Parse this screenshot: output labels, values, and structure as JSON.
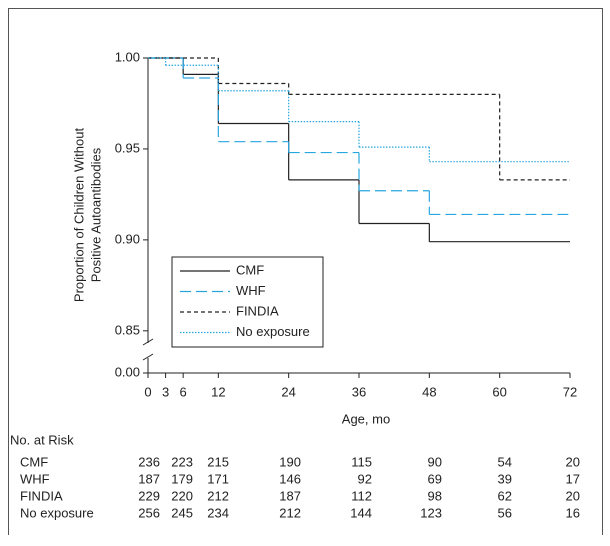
{
  "chart_data": {
    "type": "step",
    "xlabel": "Age, mo",
    "ylabel": [
      "Proportion of Children Without",
      "Positive Autoantibodies"
    ],
    "xlim": [
      0,
      72
    ],
    "xticks": [
      0,
      3,
      6,
      12,
      24,
      36,
      48,
      60,
      72
    ],
    "ylim": [
      0.84,
      1.0
    ],
    "yticks": [
      {
        "value": 0,
        "label": "0.00"
      },
      {
        "value": 0.85,
        "label": "0.85"
      },
      {
        "value": 0.9,
        "label": "0.90"
      },
      {
        "value": 0.95,
        "label": "0.95"
      },
      {
        "value": 1.0,
        "label": "1.00"
      }
    ],
    "axis_break": true,
    "legend": "lower-left",
    "series": [
      {
        "name": "CMF",
        "color": "#222222",
        "dash": "solid",
        "x": [
          0,
          6,
          12,
          24,
          36,
          48
        ],
        "values": [
          1.0,
          0.991,
          0.964,
          0.933,
          0.909,
          0.899
        ]
      },
      {
        "name": "WHF",
        "color": "#29a6df",
        "dash": "long-dash",
        "x": [
          0,
          6,
          12,
          24,
          36,
          48
        ],
        "values": [
          1.0,
          0.989,
          0.954,
          0.948,
          0.927,
          0.914
        ]
      },
      {
        "name": "FINDIA",
        "color": "#222222",
        "dash": "dashed",
        "x": [
          0,
          12,
          24,
          60
        ],
        "values": [
          1.0,
          0.986,
          0.98,
          0.933
        ]
      },
      {
        "name": "No exposure",
        "color": "#29a6df",
        "dash": "dotted",
        "x": [
          0,
          3,
          12,
          24,
          36,
          48
        ],
        "values": [
          1.0,
          0.996,
          0.982,
          0.965,
          0.951,
          0.943
        ]
      }
    ],
    "risk_table": {
      "title": "No. at Risk",
      "rows": [
        {
          "name": "CMF",
          "counts": [
            236,
            223,
            215,
            190,
            115,
            90,
            54,
            20
          ]
        },
        {
          "name": "WHF",
          "counts": [
            187,
            179,
            171,
            146,
            92,
            69,
            39,
            17
          ]
        },
        {
          "name": "FINDIA",
          "counts": [
            229,
            220,
            212,
            187,
            112,
            98,
            62,
            20
          ]
        },
        {
          "name": "No exposure",
          "counts": [
            256,
            245,
            234,
            212,
            144,
            123,
            56,
            16
          ]
        }
      ]
    }
  }
}
